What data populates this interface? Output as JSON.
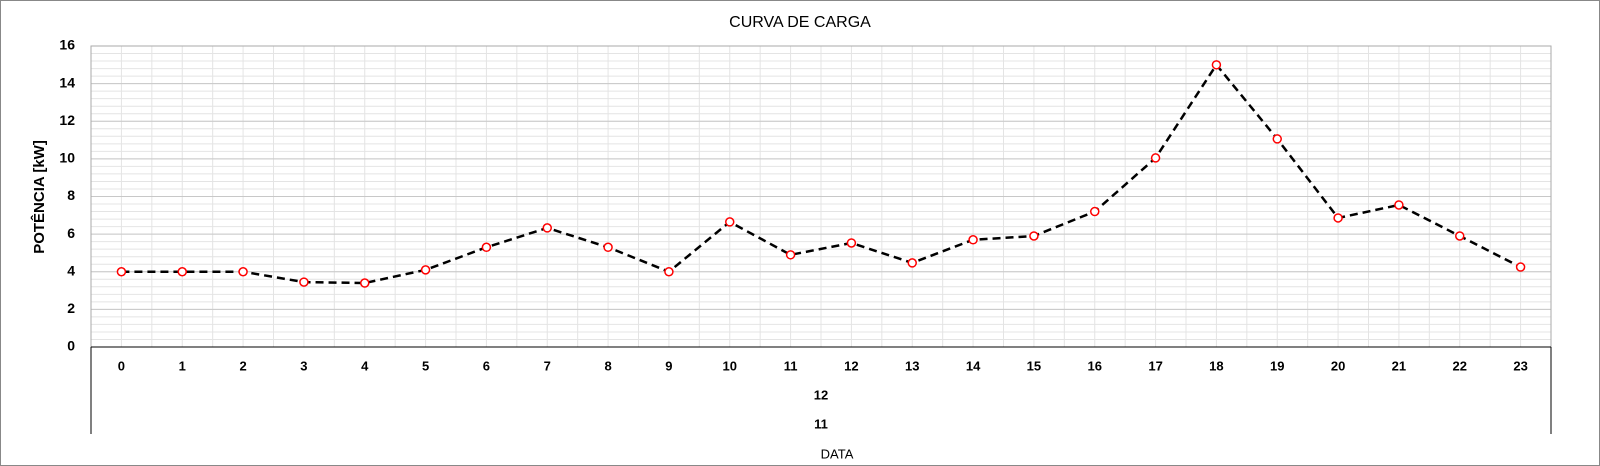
{
  "chart_data": {
    "type": "line",
    "title": "CURVA DE CARGA",
    "y_label": "POTÊNCIA [kW]",
    "x_label": "DATA",
    "categories": [
      "0",
      "1",
      "2",
      "3",
      "4",
      "5",
      "6",
      "7",
      "8",
      "9",
      "10",
      "11",
      "12",
      "13",
      "14",
      "15",
      "16",
      "17",
      "18",
      "19",
      "20",
      "21",
      "22",
      "23"
    ],
    "category_groups": [
      "12",
      "11"
    ],
    "values": [
      4.0,
      4.0,
      4.0,
      3.45,
      3.4,
      4.1,
      5.3,
      6.33,
      5.3,
      4.0,
      6.65,
      4.9,
      5.53,
      4.47,
      5.7,
      5.9,
      7.2,
      10.05,
      15.0,
      11.06,
      6.86,
      7.55,
      5.9,
      4.25
    ],
    "line_color": "#000000",
    "marker_color": "#ff0000",
    "line_style": "dashed",
    "ylim": [
      0,
      16
    ],
    "yticks": [
      0,
      2,
      4,
      6,
      8,
      10,
      12,
      14,
      16
    ],
    "grid": true
  }
}
